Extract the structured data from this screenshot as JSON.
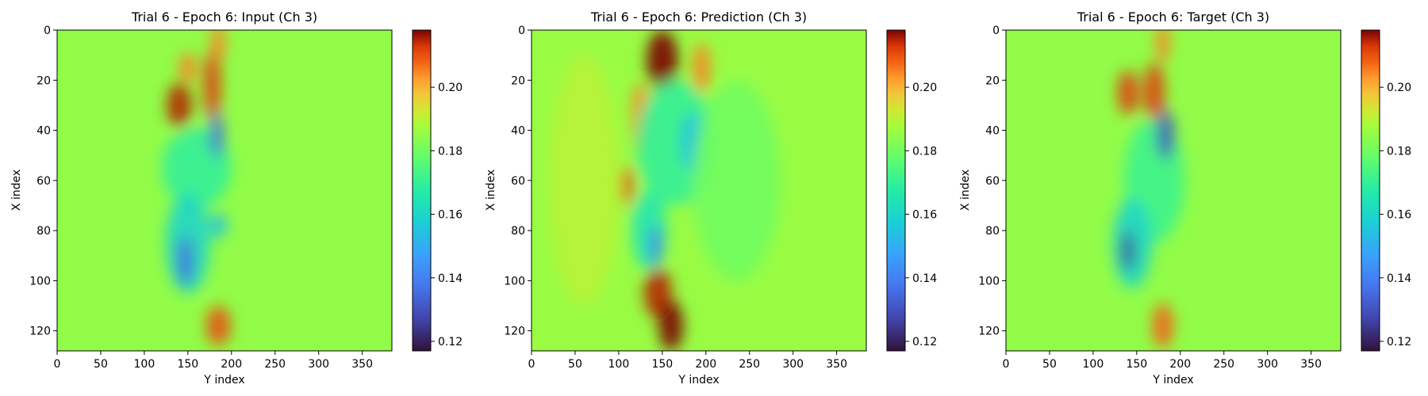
{
  "chart_data": [
    {
      "type": "heatmap",
      "title": "Trial 6 - Epoch 6: Input (Ch 3)",
      "xlabel": "Y index",
      "ylabel": "X index",
      "xlim": [
        0,
        384
      ],
      "ylim": [
        128,
        0
      ],
      "xticks": [
        "0",
        "50",
        "100",
        "150",
        "200",
        "250",
        "300",
        "350"
      ],
      "yticks": [
        "0",
        "20",
        "40",
        "60",
        "80",
        "100",
        "120"
      ],
      "colormap": "turbo",
      "colorbar": {
        "range": [
          0.117,
          0.218
        ],
        "ticks": [
          "0.12",
          "0.14",
          "0.16",
          "0.18",
          "0.20"
        ]
      },
      "background_value": 0.185,
      "features": [
        {
          "cx": 140,
          "cy": 30,
          "rx": 14,
          "ry": 9,
          "value": 0.215
        },
        {
          "cx": 150,
          "cy": 15,
          "rx": 10,
          "ry": 6,
          "value": 0.205
        },
        {
          "cx": 178,
          "cy": 22,
          "rx": 10,
          "ry": 14,
          "value": 0.212
        },
        {
          "cx": 185,
          "cy": 5,
          "rx": 8,
          "ry": 8,
          "value": 0.205
        },
        {
          "cx": 160,
          "cy": 55,
          "rx": 40,
          "ry": 16,
          "value": 0.17
        },
        {
          "cx": 183,
          "cy": 42,
          "rx": 8,
          "ry": 9,
          "value": 0.135
        },
        {
          "cx": 150,
          "cy": 85,
          "rx": 25,
          "ry": 20,
          "value": 0.16
        },
        {
          "cx": 147,
          "cy": 92,
          "rx": 9,
          "ry": 10,
          "value": 0.135
        },
        {
          "cx": 185,
          "cy": 78,
          "rx": 10,
          "ry": 5,
          "value": 0.155
        },
        {
          "cx": 185,
          "cy": 118,
          "rx": 14,
          "ry": 8,
          "value": 0.21
        }
      ]
    },
    {
      "type": "heatmap",
      "title": "Trial 6 - Epoch 6: Prediction (Ch 3)",
      "xlabel": "Y index",
      "ylabel": "X index",
      "xlim": [
        0,
        384
      ],
      "ylim": [
        128,
        0
      ],
      "xticks": [
        "0",
        "50",
        "100",
        "150",
        "200",
        "250",
        "300",
        "350"
      ],
      "yticks": [
        "0",
        "20",
        "40",
        "60",
        "80",
        "100",
        "120"
      ],
      "colormap": "turbo",
      "colorbar": {
        "range": [
          0.117,
          0.218
        ],
        "ticks": [
          "0.12",
          "0.14",
          "0.16",
          "0.18",
          "0.20"
        ]
      },
      "background_value": 0.186,
      "features": [
        {
          "cx": 150,
          "cy": 12,
          "rx": 18,
          "ry": 12,
          "value": 0.22
        },
        {
          "cx": 195,
          "cy": 15,
          "rx": 10,
          "ry": 10,
          "value": 0.205
        },
        {
          "cx": 125,
          "cy": 35,
          "rx": 10,
          "ry": 14,
          "value": 0.205
        },
        {
          "cx": 165,
          "cy": 45,
          "rx": 45,
          "ry": 25,
          "value": 0.17
        },
        {
          "cx": 185,
          "cy": 45,
          "rx": 14,
          "ry": 12,
          "value": 0.155
        },
        {
          "cx": 110,
          "cy": 62,
          "rx": 7,
          "ry": 8,
          "value": 0.21
        },
        {
          "cx": 135,
          "cy": 80,
          "rx": 20,
          "ry": 16,
          "value": 0.165
        },
        {
          "cx": 142,
          "cy": 86,
          "rx": 7,
          "ry": 8,
          "value": 0.14
        },
        {
          "cx": 145,
          "cy": 105,
          "rx": 16,
          "ry": 10,
          "value": 0.215
        },
        {
          "cx": 160,
          "cy": 118,
          "rx": 14,
          "ry": 10,
          "value": 0.22
        },
        {
          "cx": 235,
          "cy": 60,
          "rx": 50,
          "ry": 40,
          "value": 0.18
        },
        {
          "cx": 60,
          "cy": 60,
          "rx": 40,
          "ry": 50,
          "value": 0.19
        }
      ]
    },
    {
      "type": "heatmap",
      "title": "Trial 6 - Epoch 6: Target (Ch 3)",
      "xlabel": "Y index",
      "ylabel": "X index",
      "xlim": [
        0,
        384
      ],
      "ylim": [
        128,
        0
      ],
      "xticks": [
        "0",
        "50",
        "100",
        "150",
        "200",
        "250",
        "300",
        "350"
      ],
      "yticks": [
        "0",
        "20",
        "40",
        "60",
        "80",
        "100",
        "120"
      ],
      "colormap": "turbo",
      "colorbar": {
        "range": [
          0.117,
          0.218
        ],
        "ticks": [
          "0.12",
          "0.14",
          "0.16",
          "0.18",
          "0.20"
        ]
      },
      "background_value": 0.185,
      "features": [
        {
          "cx": 140,
          "cy": 25,
          "rx": 12,
          "ry": 9,
          "value": 0.212
        },
        {
          "cx": 170,
          "cy": 25,
          "rx": 12,
          "ry": 12,
          "value": 0.212
        },
        {
          "cx": 180,
          "cy": 5,
          "rx": 8,
          "ry": 8,
          "value": 0.205
        },
        {
          "cx": 170,
          "cy": 60,
          "rx": 35,
          "ry": 25,
          "value": 0.172
        },
        {
          "cx": 183,
          "cy": 42,
          "rx": 10,
          "ry": 10,
          "value": 0.13
        },
        {
          "cx": 145,
          "cy": 85,
          "rx": 22,
          "ry": 18,
          "value": 0.16
        },
        {
          "cx": 140,
          "cy": 88,
          "rx": 7,
          "ry": 8,
          "value": 0.125
        },
        {
          "cx": 180,
          "cy": 118,
          "rx": 12,
          "ry": 9,
          "value": 0.208
        }
      ]
    }
  ]
}
